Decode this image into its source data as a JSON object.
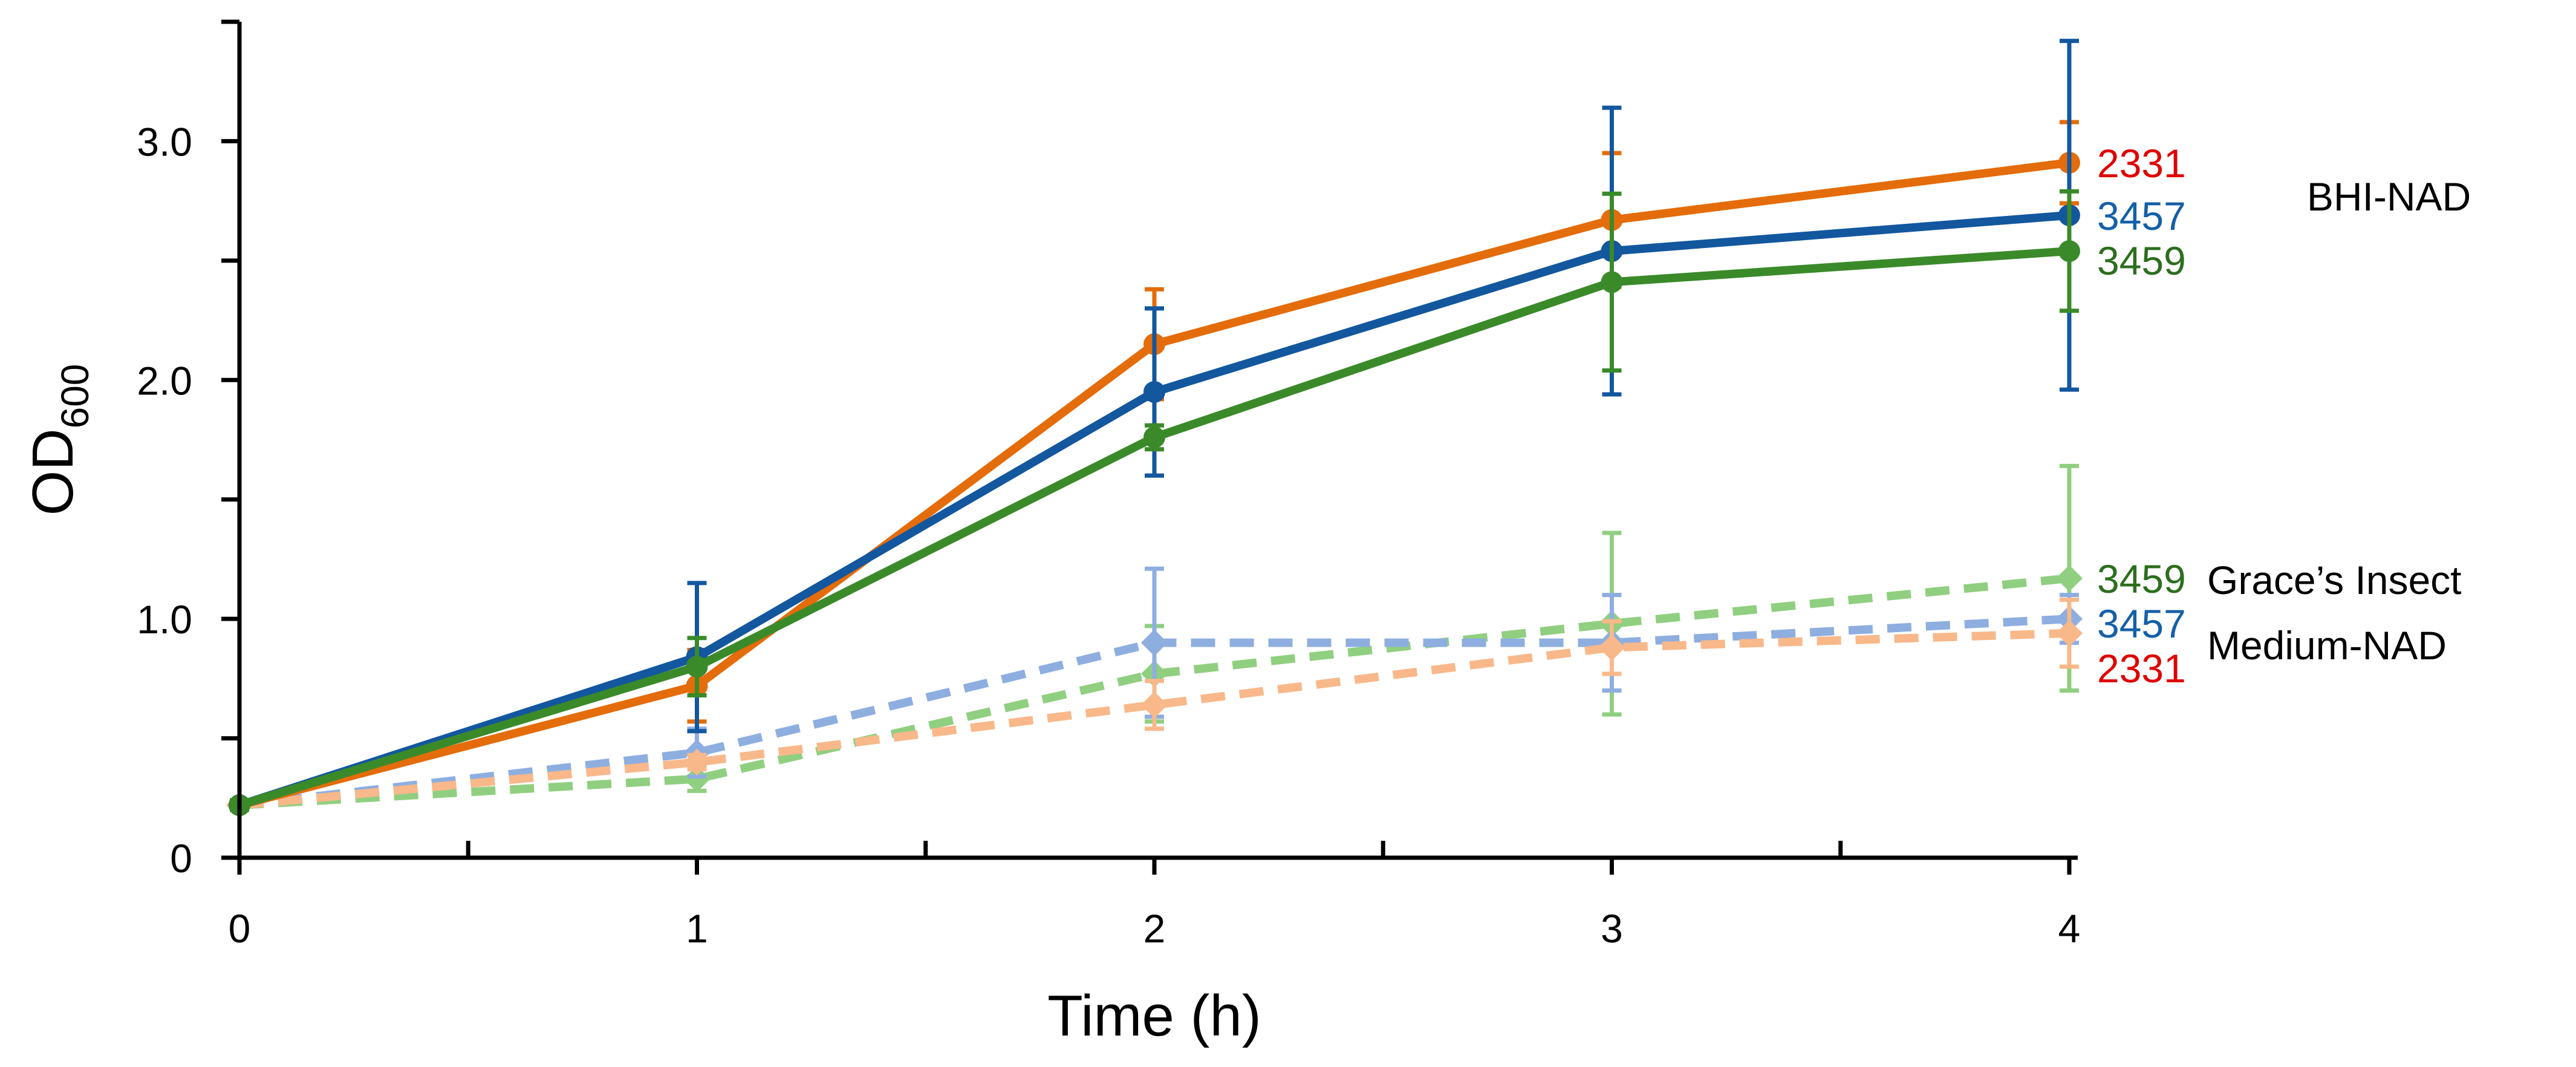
{
  "chart_data": {
    "type": "line",
    "title": "",
    "xlabel": "Time (h)",
    "ylabel": {
      "main": "OD",
      "subscript": "600"
    },
    "x": [
      0,
      1,
      2,
      3,
      4
    ],
    "xlim": [
      0,
      4
    ],
    "ylim": [
      0,
      3.5
    ],
    "x_ticks": [
      {
        "value": 0,
        "label": "0"
      },
      {
        "value": 1,
        "label": "1"
      },
      {
        "value": 2,
        "label": "2"
      },
      {
        "value": 3,
        "label": "3"
      },
      {
        "value": 4,
        "label": "4"
      }
    ],
    "x_minor_ticks": [
      0.5,
      1.5,
      2.5,
      3.5
    ],
    "y_ticks": [
      {
        "value": 0,
        "label": "0"
      },
      {
        "value": 1,
        "label": "1.0"
      },
      {
        "value": 2,
        "label": "2.0"
      },
      {
        "value": 3,
        "label": "3.0"
      }
    ],
    "y_minor_ticks": [
      0.5,
      1.5,
      2.5,
      3.5
    ],
    "grid": false,
    "series": [
      {
        "name": "2331",
        "group": "BHI-NAD",
        "style": "solid",
        "marker": "circle",
        "color": "#E46C0A",
        "label_color": "#E00000",
        "values": [
          0.22,
          0.72,
          2.15,
          2.67,
          2.91
        ],
        "errors": [
          0.02,
          0.15,
          0.23,
          0.28,
          0.17
        ]
      },
      {
        "name": "3457",
        "group": "BHI-NAD",
        "style": "solid",
        "marker": "circle",
        "color": "#13579E",
        "label_color": "#1460A8",
        "values": [
          0.22,
          0.84,
          1.95,
          2.54,
          2.69
        ],
        "errors": [
          0.02,
          0.31,
          0.35,
          0.6,
          0.73
        ]
      },
      {
        "name": "3459",
        "group": "BHI-NAD",
        "style": "solid",
        "marker": "circle",
        "color": "#3A8A2A",
        "label_color": "#2C6E1E",
        "values": [
          0.22,
          0.8,
          1.76,
          2.41,
          2.54
        ],
        "errors": [
          0.02,
          0.12,
          0.05,
          0.37,
          0.25
        ]
      },
      {
        "name": "3459",
        "group": "Grace’s Insect Medium-NAD",
        "style": "dashed",
        "marker": "diamond",
        "color": "#90CF80",
        "label_color": "#2C6E1E",
        "values": [
          0.22,
          0.33,
          0.77,
          0.98,
          1.17
        ],
        "errors": [
          0.02,
          0.05,
          0.2,
          0.38,
          0.47
        ]
      },
      {
        "name": "3457",
        "group": "Grace’s Insect Medium-NAD",
        "style": "dashed",
        "marker": "diamond",
        "color": "#8EAEE0",
        "label_color": "#1460A8",
        "values": [
          0.22,
          0.44,
          0.9,
          0.9,
          1.0
        ],
        "errors": [
          0.02,
          0.1,
          0.31,
          0.2,
          0.1
        ]
      },
      {
        "name": "2331",
        "group": "Grace’s Insect Medium-NAD",
        "style": "dashed",
        "marker": "diamond",
        "color": "#F9B88A",
        "label_color": "#E00000",
        "values": [
          0.22,
          0.4,
          0.64,
          0.88,
          0.94
        ],
        "errors": [
          0.02,
          0.03,
          0.1,
          0.11,
          0.14
        ]
      }
    ],
    "group_labels": [
      {
        "name": "BHI-NAD",
        "lines": [
          "BHI-NAD"
        ]
      },
      {
        "name": "Grace’s Insect Medium-NAD",
        "lines": [
          "Grace’s Insect",
          "Medium-NAD"
        ]
      }
    ]
  }
}
